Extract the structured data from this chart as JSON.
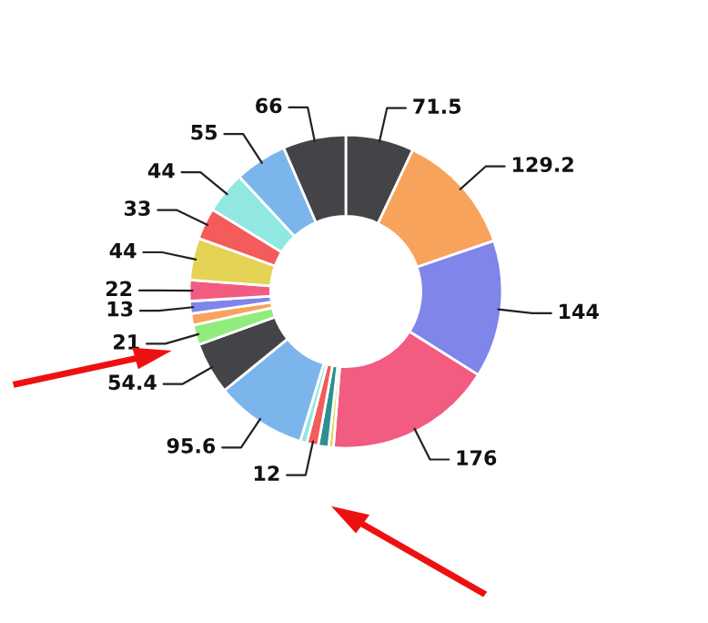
{
  "chart_data": {
    "type": "donut",
    "categories": [
      null,
      null,
      null,
      null,
      null,
      null,
      null,
      null,
      null,
      null,
      null,
      null,
      null,
      null,
      null,
      null,
      null,
      null,
      null
    ],
    "values": [
      71.5,
      129.2,
      144,
      176,
      5,
      11,
      12,
      7,
      95.6,
      54.4,
      21,
      12,
      13,
      22,
      44,
      33,
      44,
      55,
      66
    ],
    "colors": [
      "#434348",
      "#f7a35c",
      "#8085e9",
      "#f15c80",
      "#e4d354",
      "#2b908f",
      "#f45b5b",
      "#91e8e1",
      "#7cb5ec",
      "#434348",
      "#90ed7d",
      "#f7a35c",
      "#8085e9",
      "#f15c80",
      "#e4d354",
      "#f45b5b",
      "#91e8e1",
      "#7cb5ec",
      "#434348"
    ],
    "value_labels": [
      "71.5",
      "129.2",
      "144",
      "176",
      null,
      null,
      "12",
      null,
      "95.6",
      "54.4",
      "21",
      null,
      "13",
      "22",
      "44",
      "33",
      "44",
      "55",
      "66"
    ],
    "legend": false
  }
}
